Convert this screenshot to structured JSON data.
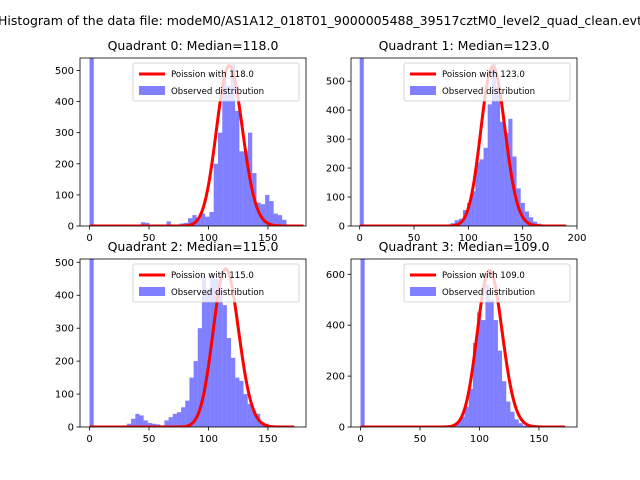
{
  "figure": {
    "suptitle": "Histogram of the data file: modeM0/AS1A12_018T01_9000005488_39517cztM0_level2_quad_clean.evt"
  },
  "colors": {
    "fit": "#ff0000",
    "hist": "#0000ff",
    "hist_alpha": 0.5,
    "axis": "#000000"
  },
  "chart_data": [
    {
      "type": "bar",
      "title": "Quadrant 0: Median=118.0",
      "xlabel": "",
      "ylabel": "",
      "xlim": [
        -8,
        182
      ],
      "ylim": [
        0,
        540
      ],
      "xticks": [
        0,
        50,
        100,
        150
      ],
      "yticks": [
        0,
        100,
        200,
        300,
        400,
        500
      ],
      "grid": false,
      "legend_position": "top-right",
      "series": [
        {
          "name": "Observed distribution",
          "type": "histogram",
          "x0": 0,
          "binwidth": 3.6,
          "values": [
            540,
            0,
            0,
            0,
            0,
            0,
            0,
            0,
            0,
            0,
            0,
            0,
            12,
            10,
            3,
            5,
            2,
            2,
            15,
            5,
            5,
            8,
            10,
            25,
            35,
            28,
            40,
            30,
            45,
            200,
            300,
            480,
            450,
            520,
            370,
            240,
            240,
            300,
            170,
            75,
            70,
            100,
            80,
            40,
            35,
            20,
            5,
            3,
            1,
            0
          ]
        },
        {
          "name": "Poission with 118.0",
          "type": "line",
          "mean": 118.0,
          "peak": 515,
          "x_end": 180
        }
      ]
    },
    {
      "type": "bar",
      "title": "Quadrant 1: Median=123.0",
      "xlabel": "",
      "ylabel": "",
      "xlim": [
        -8,
        200
      ],
      "ylim": [
        0,
        580
      ],
      "xticks": [
        0,
        50,
        100,
        150,
        200
      ],
      "yticks": [
        0,
        100,
        200,
        300,
        400,
        500
      ],
      "grid": false,
      "legend_position": "top-right",
      "series": [
        {
          "name": "Observed distribution",
          "type": "histogram",
          "x0": 0,
          "binwidth": 3.8,
          "values": [
            580,
            0,
            0,
            0,
            0,
            0,
            0,
            0,
            0,
            0,
            0,
            0,
            0,
            0,
            0,
            0,
            0,
            0,
            0,
            0,
            3,
            5,
            10,
            20,
            25,
            55,
            80,
            120,
            220,
            230,
            270,
            420,
            560,
            480,
            360,
            320,
            370,
            240,
            130,
            80,
            50,
            30,
            15,
            8,
            5,
            2,
            0,
            0,
            0,
            0
          ]
        },
        {
          "name": "Poission with 123.0",
          "type": "line",
          "mean": 123.0,
          "peak": 550,
          "x_end": 190
        }
      ]
    },
    {
      "type": "bar",
      "title": "Quadrant 2: Median=115.0",
      "xlabel": "",
      "ylabel": "",
      "xlim": [
        -8,
        182
      ],
      "ylim": [
        0,
        510
      ],
      "xticks": [
        0,
        50,
        100,
        150
      ],
      "yticks": [
        0,
        100,
        200,
        300,
        400,
        500
      ],
      "grid": false,
      "legend_position": "top-right",
      "series": [
        {
          "name": "Observed distribution",
          "type": "histogram",
          "x0": 0,
          "binwidth": 3.5,
          "values": [
            510,
            0,
            0,
            0,
            0,
            0,
            0,
            2,
            5,
            10,
            25,
            40,
            35,
            20,
            12,
            10,
            8,
            5,
            20,
            30,
            40,
            45,
            60,
            80,
            150,
            200,
            300,
            460,
            420,
            460,
            450,
            420,
            370,
            270,
            210,
            150,
            140,
            100,
            70,
            50,
            40,
            15,
            10,
            5,
            3,
            2,
            0,
            0,
            0,
            0
          ]
        },
        {
          "name": "Poission with 115.0",
          "type": "line",
          "mean": 115.0,
          "peak": 480,
          "x_end": 172
        }
      ]
    },
    {
      "type": "bar",
      "title": "Quadrant 3: Median=109.0",
      "xlabel": "",
      "ylabel": "",
      "xlim": [
        -8,
        182
      ],
      "ylim": [
        0,
        660
      ],
      "xticks": [
        0,
        50,
        100,
        150
      ],
      "yticks": [
        0,
        200,
        400,
        600
      ],
      "grid": false,
      "legend_position": "top-right",
      "series": [
        {
          "name": "Observed distribution",
          "type": "histogram",
          "x0": 0,
          "binwidth": 3.5,
          "values": [
            660,
            0,
            0,
            0,
            0,
            0,
            0,
            0,
            0,
            0,
            0,
            0,
            0,
            0,
            0,
            0,
            0,
            0,
            0,
            0,
            0,
            5,
            10,
            20,
            40,
            80,
            150,
            330,
            450,
            420,
            560,
            500,
            420,
            300,
            180,
            100,
            60,
            30,
            15,
            5,
            2,
            0,
            0,
            0,
            0,
            0,
            0,
            0,
            0,
            0
          ]
        },
        {
          "name": "Poission with 109.0",
          "type": "line",
          "mean": 109.0,
          "peak": 615,
          "x_end": 172
        }
      ]
    }
  ]
}
